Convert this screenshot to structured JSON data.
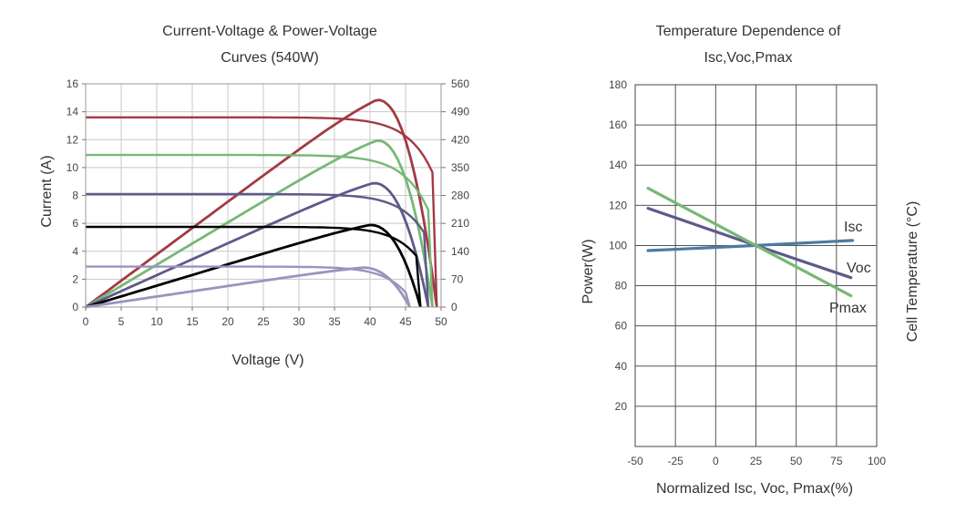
{
  "chart_data": [
    {
      "type": "line",
      "title_line1": "Current-Voltage & Power-Voltage",
      "title_line2": "Curves (540W)",
      "xlabel": "Voltage (V)",
      "ylabel": "Current (A)",
      "xlim": [
        0,
        50
      ],
      "ylim": [
        0,
        16
      ],
      "y2lim": [
        0,
        560
      ],
      "grid": true,
      "x_ticks": [
        "0",
        "5",
        "10",
        "15",
        "20",
        "25",
        "30",
        "35",
        "40",
        "45",
        "50"
      ],
      "y_ticks": [
        "0",
        "2",
        "4",
        "6",
        "8",
        "10",
        "12",
        "14",
        "16"
      ],
      "y2_ticks": [
        "0",
        "70",
        "140",
        "210",
        "280",
        "350",
        "420",
        "490",
        "560"
      ],
      "series": [
        {
          "kind": "iv",
          "color": "#a23a44",
          "isc": 13.6,
          "voc": 49.4,
          "vmp": 41.5,
          "imp": 13.1
        },
        {
          "kind": "pv",
          "color": "#a23a44",
          "isc": 13.6,
          "voc": 49.4,
          "vmp": 41.0,
          "pmax": 520
        },
        {
          "kind": "iv",
          "color": "#76b876",
          "isc": 10.9,
          "voc": 48.8,
          "vmp": 41.0,
          "imp": 10.4
        },
        {
          "kind": "pv",
          "color": "#76b876",
          "isc": 10.9,
          "voc": 48.8,
          "vmp": 41.0,
          "pmax": 418
        },
        {
          "kind": "iv",
          "color": "#5d5a8a",
          "isc": 8.1,
          "voc": 48.2,
          "vmp": 40.5,
          "imp": 7.75
        },
        {
          "kind": "pv",
          "color": "#5d5a8a",
          "isc": 8.1,
          "voc": 48.2,
          "vmp": 40.5,
          "pmax": 311
        },
        {
          "kind": "iv",
          "color": "#000000",
          "isc": 5.75,
          "voc": 47.1,
          "vmp": 40.0,
          "imp": 5.45
        },
        {
          "kind": "pv",
          "color": "#000000",
          "isc": 5.75,
          "voc": 47.1,
          "vmp": 40.0,
          "pmax": 206
        },
        {
          "kind": "iv",
          "color": "#9b93bd",
          "isc": 2.9,
          "voc": 45.6,
          "vmp": 38.5,
          "imp": 2.65
        },
        {
          "kind": "pv",
          "color": "#9b93bd",
          "isc": 2.9,
          "voc": 45.6,
          "vmp": 39.0,
          "pmax": 99
        }
      ]
    },
    {
      "type": "line",
      "title_line1": "Temperature Dependence of",
      "title_line2": "Isc,Voc,Pmax",
      "xlabel": "Normalized Isc, Voc, Pmax(%)",
      "ylabel": "Power(W)",
      "y2label": "Cell Temperature (°C)",
      "xlim": [
        -50,
        100
      ],
      "ylim": [
        0,
        180
      ],
      "grid": true,
      "x_ticks": [
        "-50",
        "-25",
        "0",
        "25",
        "50",
        "75",
        "100"
      ],
      "y_ticks": [
        "20",
        "40",
        "60",
        "80",
        "100",
        "120",
        "140",
        "160",
        "180"
      ],
      "series": [
        {
          "name": "Isc",
          "color": "#4e7aa0",
          "x": [
            -42,
            25,
            85
          ],
          "y": [
            97.5,
            100,
            102.5
          ]
        },
        {
          "name": "Voc",
          "color": "#5d5a8a",
          "x": [
            -42,
            25,
            84
          ],
          "y": [
            118.5,
            100,
            84
          ]
        },
        {
          "name": "Pmax",
          "color": "#76b876",
          "x": [
            -42,
            25,
            84
          ],
          "y": [
            128.5,
            100,
            75
          ]
        }
      ]
    }
  ]
}
